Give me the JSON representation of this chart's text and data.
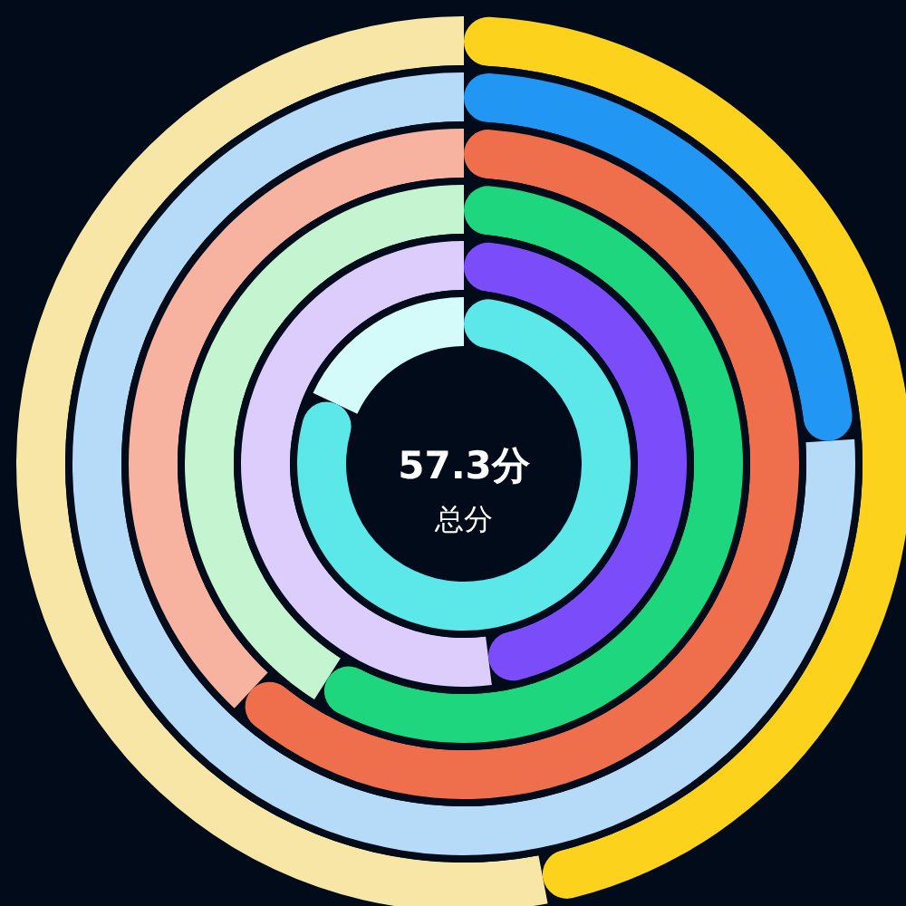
{
  "chart_data": [
    {
      "type": "donut",
      "categories": [
        null,
        null
      ],
      "values": [
        47,
        53
      ],
      "colors": [
        "#fcd21c",
        "#f7e6a6"
      ]
    },
    {
      "type": "donut",
      "categories": [
        null,
        null
      ],
      "values": [
        24,
        76
      ],
      "colors": [
        "#2196f3",
        "#b5dbf9"
      ]
    },
    {
      "type": "donut",
      "categories": [
        null,
        null
      ],
      "values": [
        62,
        38
      ],
      "colors": [
        "#ef6e4b",
        "#f7b3a0"
      ]
    },
    {
      "type": "donut",
      "categories": [
        null,
        null
      ],
      "values": [
        59,
        41
      ],
      "colors": [
        "#1ed67e",
        "#c4f5d0"
      ]
    },
    {
      "type": "donut",
      "categories": [
        null,
        null
      ],
      "values": [
        48,
        52
      ],
      "colors": [
        "#7b4cf9",
        "#dccdfd"
      ]
    },
    {
      "type": "donut",
      "categories": [
        null,
        null
      ],
      "values": [
        82,
        18
      ],
      "colors": [
        "#5ce8e8",
        "#d4fafa"
      ],
      "title": "57.3分",
      "subtitle": "总分"
    }
  ]
}
